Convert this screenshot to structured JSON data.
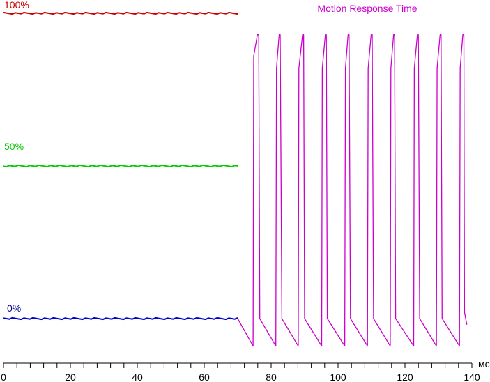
{
  "chart_data": {
    "type": "line",
    "title": "Motion Response Time",
    "xlabel": "",
    "ylabel": "",
    "x_unit": "мс",
    "xlim": [
      0,
      140
    ],
    "x_ticks": [
      0,
      20,
      40,
      60,
      80,
      100,
      120,
      140
    ],
    "x_tick_labels": [
      "0",
      "20",
      "40",
      "60",
      "80",
      "100",
      "120",
      "140"
    ],
    "x_minor_step": 4,
    "ylim": [
      -0.1,
      1.0
    ],
    "level_labels": [
      "100%",
      "50%",
      "0%"
    ],
    "reference_lines": [
      {
        "level": 1.0,
        "color": "#cc0000",
        "x_range": [
          0,
          70
        ]
      },
      {
        "level": 0.5,
        "color": "#00cc00",
        "x_range": [
          0,
          70
        ]
      },
      {
        "level": 0.0,
        "color": "#0000cc",
        "x_range": [
          0,
          70
        ]
      }
    ],
    "series": [
      {
        "color": "#cc00cc",
        "x": [
          70,
          74.6,
          74.8,
          75.9,
          76.3,
          76.6,
          81.4,
          81.6,
          82.4,
          82.7,
          83.2,
          88.1,
          88.3,
          89.4,
          89.7,
          90.0,
          95.1,
          95.3,
          96.2,
          96.5,
          96.8,
          102.0,
          102.2,
          103.0,
          103.3,
          103.7,
          108.8,
          109.0,
          109.9,
          110.2,
          110.6,
          115.6,
          115.8,
          116.6,
          116.9,
          117.2,
          122.6,
          122.8,
          123.7,
          124.0,
          124.4,
          129.4,
          129.6,
          130.5,
          130.8,
          131.1,
          136.3,
          136.5,
          137.3,
          137.6,
          137.8,
          138.5
        ],
        "y": [
          0.0,
          -0.09,
          0.86,
          0.93,
          0.93,
          0.0,
          -0.09,
          0.82,
          0.93,
          0.93,
          0.0,
          -0.09,
          0.82,
          0.93,
          0.93,
          0.0,
          -0.09,
          0.82,
          0.93,
          0.93,
          0.0,
          -0.09,
          0.82,
          0.93,
          0.93,
          0.0,
          -0.09,
          0.82,
          0.93,
          0.93,
          0.0,
          -0.09,
          0.82,
          0.93,
          0.93,
          0.0,
          -0.09,
          0.82,
          0.93,
          0.93,
          0.0,
          -0.09,
          0.82,
          0.93,
          0.93,
          0.0,
          -0.09,
          0.82,
          0.93,
          0.93,
          0.02,
          -0.02
        ]
      }
    ],
    "grid": false,
    "legend": "none",
    "colors": {
      "title": "#cc00cc",
      "label_100": "#cc0000",
      "label_50": "#00cc00",
      "label_0": "#000099",
      "axis": "#000000"
    }
  }
}
